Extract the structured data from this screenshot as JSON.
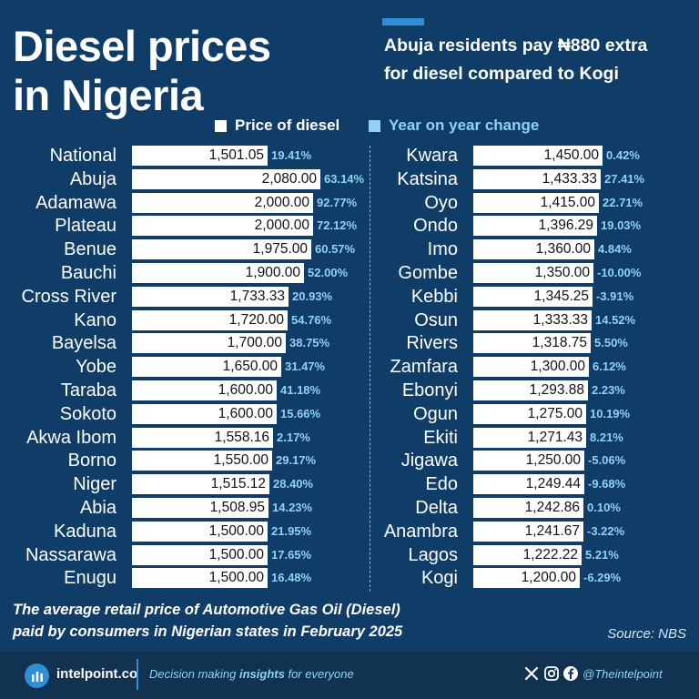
{
  "header": {
    "title_line1": "Diesel prices",
    "title_line2": "in Nigeria",
    "subtitle_line1": "Abuja residents pay ₦880 extra",
    "subtitle_line2": "for diesel compared to Kogi"
  },
  "legend": {
    "price_label": "Price of diesel",
    "yoy_label": "Year on year change"
  },
  "colors": {
    "background": "#0f3d68",
    "bar": "#ffffff",
    "yoy_text": "#8fd3f2",
    "accent": "#2f8fd6",
    "footer": "#113250"
  },
  "chart_data": {
    "type": "bar",
    "orientation": "horizontal",
    "title": "Diesel prices in Nigeria",
    "unit": "₦ per litre",
    "series": [
      {
        "name": "Price of diesel"
      },
      {
        "name": "Year on year change"
      }
    ],
    "xlim": [
      0,
      2080
    ],
    "columns": [
      [
        {
          "state": "National",
          "price": "1,501.05",
          "value": 1501.05,
          "yoy": "19.41%"
        },
        {
          "state": "Abuja",
          "price": "2,080.00",
          "value": 2080.0,
          "yoy": "63.14%"
        },
        {
          "state": "Adamawa",
          "price": "2,000.00",
          "value": 2000.0,
          "yoy": "92.77%"
        },
        {
          "state": "Plateau",
          "price": "2,000.00",
          "value": 2000.0,
          "yoy": "72.12%"
        },
        {
          "state": "Benue",
          "price": "1,975.00",
          "value": 1975.0,
          "yoy": "60.57%"
        },
        {
          "state": "Bauchi",
          "price": "1,900.00",
          "value": 1900.0,
          "yoy": "52.00%"
        },
        {
          "state": "Cross River",
          "price": "1,733.33",
          "value": 1733.33,
          "yoy": "20.93%"
        },
        {
          "state": "Kano",
          "price": "1,720.00",
          "value": 1720.0,
          "yoy": "54.76%"
        },
        {
          "state": "Bayelsa",
          "price": "1,700.00",
          "value": 1700.0,
          "yoy": "38.75%"
        },
        {
          "state": "Yobe",
          "price": "1,650.00",
          "value": 1650.0,
          "yoy": "31.47%"
        },
        {
          "state": "Taraba",
          "price": "1,600.00",
          "value": 1600.0,
          "yoy": "41.18%"
        },
        {
          "state": "Sokoto",
          "price": "1,600.00",
          "value": 1600.0,
          "yoy": "15.66%"
        },
        {
          "state": "Akwa Ibom",
          "price": "1,558.16",
          "value": 1558.16,
          "yoy": "2.17%"
        },
        {
          "state": "Borno",
          "price": "1,550.00",
          "value": 1550.0,
          "yoy": "29.17%"
        },
        {
          "state": "Niger",
          "price": "1,515.12",
          "value": 1515.12,
          "yoy": "28.40%"
        },
        {
          "state": "Abia",
          "price": "1,508.95",
          "value": 1508.95,
          "yoy": "14.23%"
        },
        {
          "state": "Kaduna",
          "price": "1,500.00",
          "value": 1500.0,
          "yoy": "21.95%"
        },
        {
          "state": "Nassarawa",
          "price": "1,500.00",
          "value": 1500.0,
          "yoy": "17.65%"
        },
        {
          "state": "Enugu",
          "price": "1,500.00",
          "value": 1500.0,
          "yoy": "16.48%"
        }
      ],
      [
        {
          "state": "Kwara",
          "price": "1,450.00",
          "value": 1450.0,
          "yoy": "0.42%"
        },
        {
          "state": "Katsina",
          "price": "1,433.33",
          "value": 1433.33,
          "yoy": "27.41%"
        },
        {
          "state": "Oyo",
          "price": "1,415.00",
          "value": 1415.0,
          "yoy": "22.71%"
        },
        {
          "state": "Ondo",
          "price": "1,396.29",
          "value": 1396.29,
          "yoy": "19.03%"
        },
        {
          "state": "Imo",
          "price": "1,360.00",
          "value": 1360.0,
          "yoy": "4.84%"
        },
        {
          "state": "Gombe",
          "price": "1,350.00",
          "value": 1350.0,
          "yoy": "-10.00%"
        },
        {
          "state": "Kebbi",
          "price": "1,345.25",
          "value": 1345.25,
          "yoy": "-3.91%"
        },
        {
          "state": "Osun",
          "price": "1,333.33",
          "value": 1333.33,
          "yoy": "14.52%"
        },
        {
          "state": "Rivers",
          "price": "1,318.75",
          "value": 1318.75,
          "yoy": "5.50%"
        },
        {
          "state": "Zamfara",
          "price": "1,300.00",
          "value": 1300.0,
          "yoy": "6.12%"
        },
        {
          "state": "Ebonyi",
          "price": "1,293.88",
          "value": 1293.88,
          "yoy": "2.23%"
        },
        {
          "state": "Ogun",
          "price": "1,275.00",
          "value": 1275.0,
          "yoy": "10.19%"
        },
        {
          "state": "Ekiti",
          "price": "1,271.43",
          "value": 1271.43,
          "yoy": "8.21%"
        },
        {
          "state": "Jigawa",
          "price": "1,250.00",
          "value": 1250.0,
          "yoy": "-5.06%"
        },
        {
          "state": "Edo",
          "price": "1,249.44",
          "value": 1249.44,
          "yoy": "-9.68%"
        },
        {
          "state": "Delta",
          "price": "1,242.86",
          "value": 1242.86,
          "yoy": "0.10%"
        },
        {
          "state": "Anambra",
          "price": "1,241.67",
          "value": 1241.67,
          "yoy": "-3.22%"
        },
        {
          "state": "Lagos",
          "price": "1,222.22",
          "value": 1222.22,
          "yoy": "5.21%"
        },
        {
          "state": "Kogi",
          "price": "1,200.00",
          "value": 1200.0,
          "yoy": "-6.29%"
        }
      ]
    ]
  },
  "caption": {
    "line1": "The average retail price of Automotive Gas Oil (Diesel)",
    "line2": "paid by consumers in Nigerian states in February 2025"
  },
  "source": "Source: NBS",
  "footer": {
    "brand": "intelpoint.co",
    "tagline_pre": "Decision making ",
    "tagline_bold": "insights",
    "tagline_post": " for everyone",
    "handle": "@Theintelpoint",
    "icons": [
      "intelpoint-logo-icon",
      "x-icon",
      "instagram-icon",
      "facebook-icon"
    ]
  }
}
